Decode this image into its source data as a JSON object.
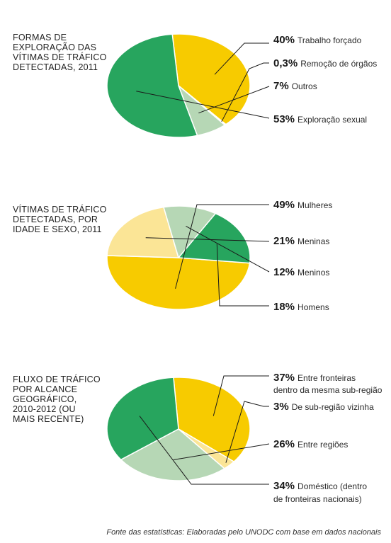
{
  "colors": {
    "yellow": "#F7CB00",
    "light_yellow": "#FBE596",
    "pale_green": "#B6D7B5",
    "green": "#27A55E",
    "tiny_slice": "#FDF0C0"
  },
  "chart_data": [
    {
      "type": "pie",
      "title": [
        "FORMAS DE",
        "EXPLORAÇÃO DAS",
        "VÍTIMAS DE TRÁFICO",
        "DETECTADAS, 2011"
      ],
      "slices": [
        {
          "pct_label": "40%",
          "value": 40,
          "label": [
            "Trabalho forçado"
          ],
          "color": "yellow"
        },
        {
          "pct_label": "0,3%",
          "value": 0.3,
          "label": [
            "Remoção de órgãos"
          ],
          "color": "tiny_slice"
        },
        {
          "pct_label": "7%",
          "value": 7,
          "label": [
            "Outros"
          ],
          "color": "pale_green"
        },
        {
          "pct_label": "53%",
          "value": 53,
          "label": [
            "Exploração sexual"
          ],
          "color": "green"
        }
      ]
    },
    {
      "type": "pie",
      "title": [
        "VÍTIMAS DE TRÁFICO",
        "DETECTADAS, POR",
        "IDADE E SEXO, 2011"
      ],
      "slices": [
        {
          "pct_label": "49%",
          "value": 49,
          "label": [
            "Mulheres"
          ],
          "color": "yellow"
        },
        {
          "pct_label": "21%",
          "value": 21,
          "label": [
            "Meninas"
          ],
          "color": "light_yellow"
        },
        {
          "pct_label": "12%",
          "value": 12,
          "label": [
            "Meninos"
          ],
          "color": "pale_green"
        },
        {
          "pct_label": "18%",
          "value": 18,
          "label": [
            "Homens"
          ],
          "color": "green"
        }
      ]
    },
    {
      "type": "pie",
      "title": [
        "FLUXO DE TRÁFICO",
        "POR ALCANCE",
        "GEOGRÁFICO,",
        "2010-2012 (OU",
        "MAIS RECENTE)"
      ],
      "slices": [
        {
          "pct_label": "37%",
          "value": 37,
          "label": [
            "Entre fronteiras",
            "dentro da mesma sub-região"
          ],
          "color": "yellow"
        },
        {
          "pct_label": "3%",
          "value": 3,
          "label": [
            "De sub-região vizinha"
          ],
          "color": "light_yellow"
        },
        {
          "pct_label": "26%",
          "value": 26,
          "label": [
            "Entre regiões"
          ],
          "color": "pale_green"
        },
        {
          "pct_label": "34%",
          "value": 34,
          "label": [
            "Doméstico (dentro",
            "de fronteiras nacionais)"
          ],
          "color": "green"
        }
      ]
    }
  ],
  "source": "Fonte das estatísticas: Elaboradas pelo UNODC com base em dados nacionais"
}
